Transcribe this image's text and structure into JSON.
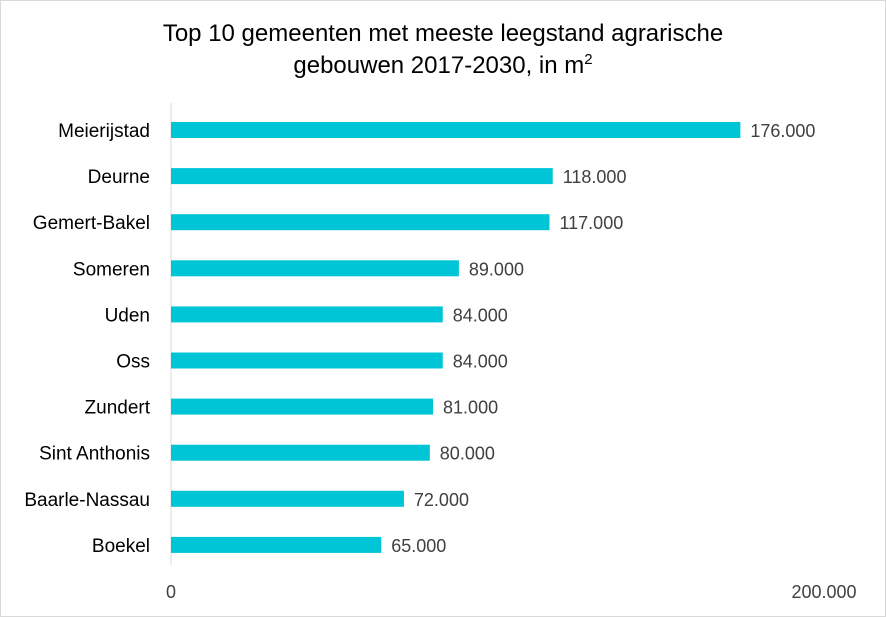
{
  "chart_data": {
    "type": "bar",
    "orientation": "horizontal",
    "title_line1": "Top 10 gemeenten met meeste leegstand agrarische",
    "title_line2": "gebouwen 2017-2030,  in m",
    "title_superscript": "2",
    "categories": [
      "Meierijstad",
      "Deurne",
      "Gemert-Bakel",
      "Someren",
      "Uden",
      "Oss",
      "Zundert",
      "Sint Anthonis",
      "Baarle-Nassau",
      "Boekel"
    ],
    "values": [
      176000,
      118000,
      117000,
      89000,
      84000,
      84000,
      81000,
      80000,
      72000,
      65000
    ],
    "value_labels": [
      "176.000",
      "118.000",
      "117.000",
      "89.000",
      "84.000",
      "84.000",
      "81.000",
      "80.000",
      "72.000",
      "65.000"
    ],
    "xlim": [
      0,
      200000
    ],
    "x_ticks": [
      0,
      200000
    ],
    "x_tick_labels": [
      "0",
      "200.000"
    ],
    "bar_color": "#00c5d6",
    "grid": false,
    "legend": "none"
  }
}
